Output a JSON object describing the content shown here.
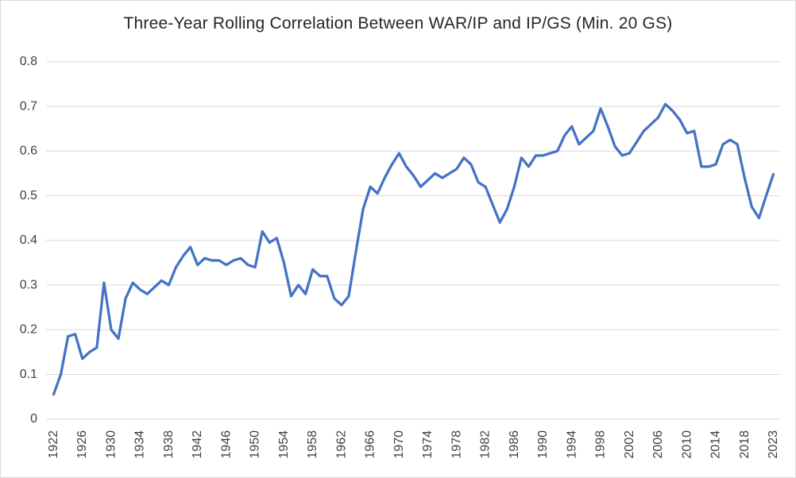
{
  "window": {
    "background": "#FFFFFF",
    "border_color": "#D9D9D9"
  },
  "chart_data": {
    "type": "line",
    "title": "Three-Year Rolling Correlation Between WAR/IP and IP/GS (Min. 20 GS)",
    "categories": [
      "1922",
      "1923",
      "1924",
      "1925",
      "1926",
      "1927",
      "1928",
      "1929",
      "1930",
      "1931",
      "1932",
      "1933",
      "1934",
      "1935",
      "1936",
      "1937",
      "1938",
      "1939",
      "1940",
      "1941",
      "1942",
      "1943",
      "1944",
      "1945",
      "1946",
      "1947",
      "1948",
      "1949",
      "1950",
      "1951",
      "1952",
      "1953",
      "1954",
      "1955",
      "1956",
      "1957",
      "1958",
      "1959",
      "1960",
      "1961",
      "1962",
      "1963",
      "1964",
      "1965",
      "1966",
      "1967",
      "1968",
      "1969",
      "1970",
      "1971",
      "1972",
      "1973",
      "1974",
      "1975",
      "1976",
      "1977",
      "1978",
      "1979",
      "1980",
      "1981",
      "1982",
      "1983",
      "1984",
      "1985",
      "1986",
      "1987",
      "1988",
      "1989",
      "1990",
      "1991",
      "1992",
      "1993",
      "1994",
      "1995",
      "1996",
      "1997",
      "1998",
      "1999",
      "2000",
      "2001",
      "2002",
      "2003",
      "2004",
      "2005",
      "2006",
      "2007",
      "2008",
      "2009",
      "2010",
      "2011",
      "2012",
      "2013",
      "2014",
      "2015",
      "2016",
      "2017",
      "2018",
      "2019",
      "2021",
      "2022",
      "2023"
    ],
    "values": [
      0.055,
      0.1,
      0.185,
      0.19,
      0.135,
      0.15,
      0.16,
      0.305,
      0.2,
      0.18,
      0.27,
      0.305,
      0.29,
      0.28,
      0.295,
      0.31,
      0.3,
      0.34,
      0.365,
      0.385,
      0.345,
      0.36,
      0.355,
      0.355,
      0.345,
      0.355,
      0.36,
      0.345,
      0.34,
      0.42,
      0.395,
      0.405,
      0.35,
      0.275,
      0.3,
      0.28,
      0.335,
      0.32,
      0.32,
      0.27,
      0.255,
      0.275,
      0.375,
      0.47,
      0.52,
      0.505,
      0.54,
      0.57,
      0.595,
      0.565,
      0.545,
      0.52,
      0.535,
      0.55,
      0.54,
      0.55,
      0.56,
      0.585,
      0.57,
      0.53,
      0.52,
      0.48,
      0.44,
      0.47,
      0.52,
      0.585,
      0.565,
      0.59,
      0.59,
      0.595,
      0.6,
      0.635,
      0.655,
      0.615,
      0.63,
      0.645,
      0.695,
      0.655,
      0.61,
      0.59,
      0.595,
      0.62,
      0.645,
      0.66,
      0.675,
      0.705,
      0.69,
      0.67,
      0.64,
      0.645,
      0.565,
      0.565,
      0.57,
      0.615,
      0.625,
      0.615,
      0.54,
      0.475,
      0.45,
      0.5,
      0.548
    ],
    "xtick_labels": [
      "1922",
      "1926",
      "1930",
      "1934",
      "1938",
      "1942",
      "1946",
      "1950",
      "1954",
      "1958",
      "1962",
      "1966",
      "1970",
      "1974",
      "1978",
      "1982",
      "1986",
      "1990",
      "1994",
      "1998",
      "2002",
      "2006",
      "2010",
      "2014",
      "2018",
      "2023"
    ],
    "ytick_labels": [
      "0",
      "0.1",
      "0.2",
      "0.3",
      "0.4",
      "0.5",
      "0.6",
      "0.7",
      "0.8"
    ],
    "ylim": [
      0,
      0.8
    ],
    "grid": true,
    "legend": "none",
    "line_color": "#4472C4",
    "gridline_color": "#D9D9D9",
    "tick_label_color": "#404040",
    "title_color": "#262626"
  }
}
